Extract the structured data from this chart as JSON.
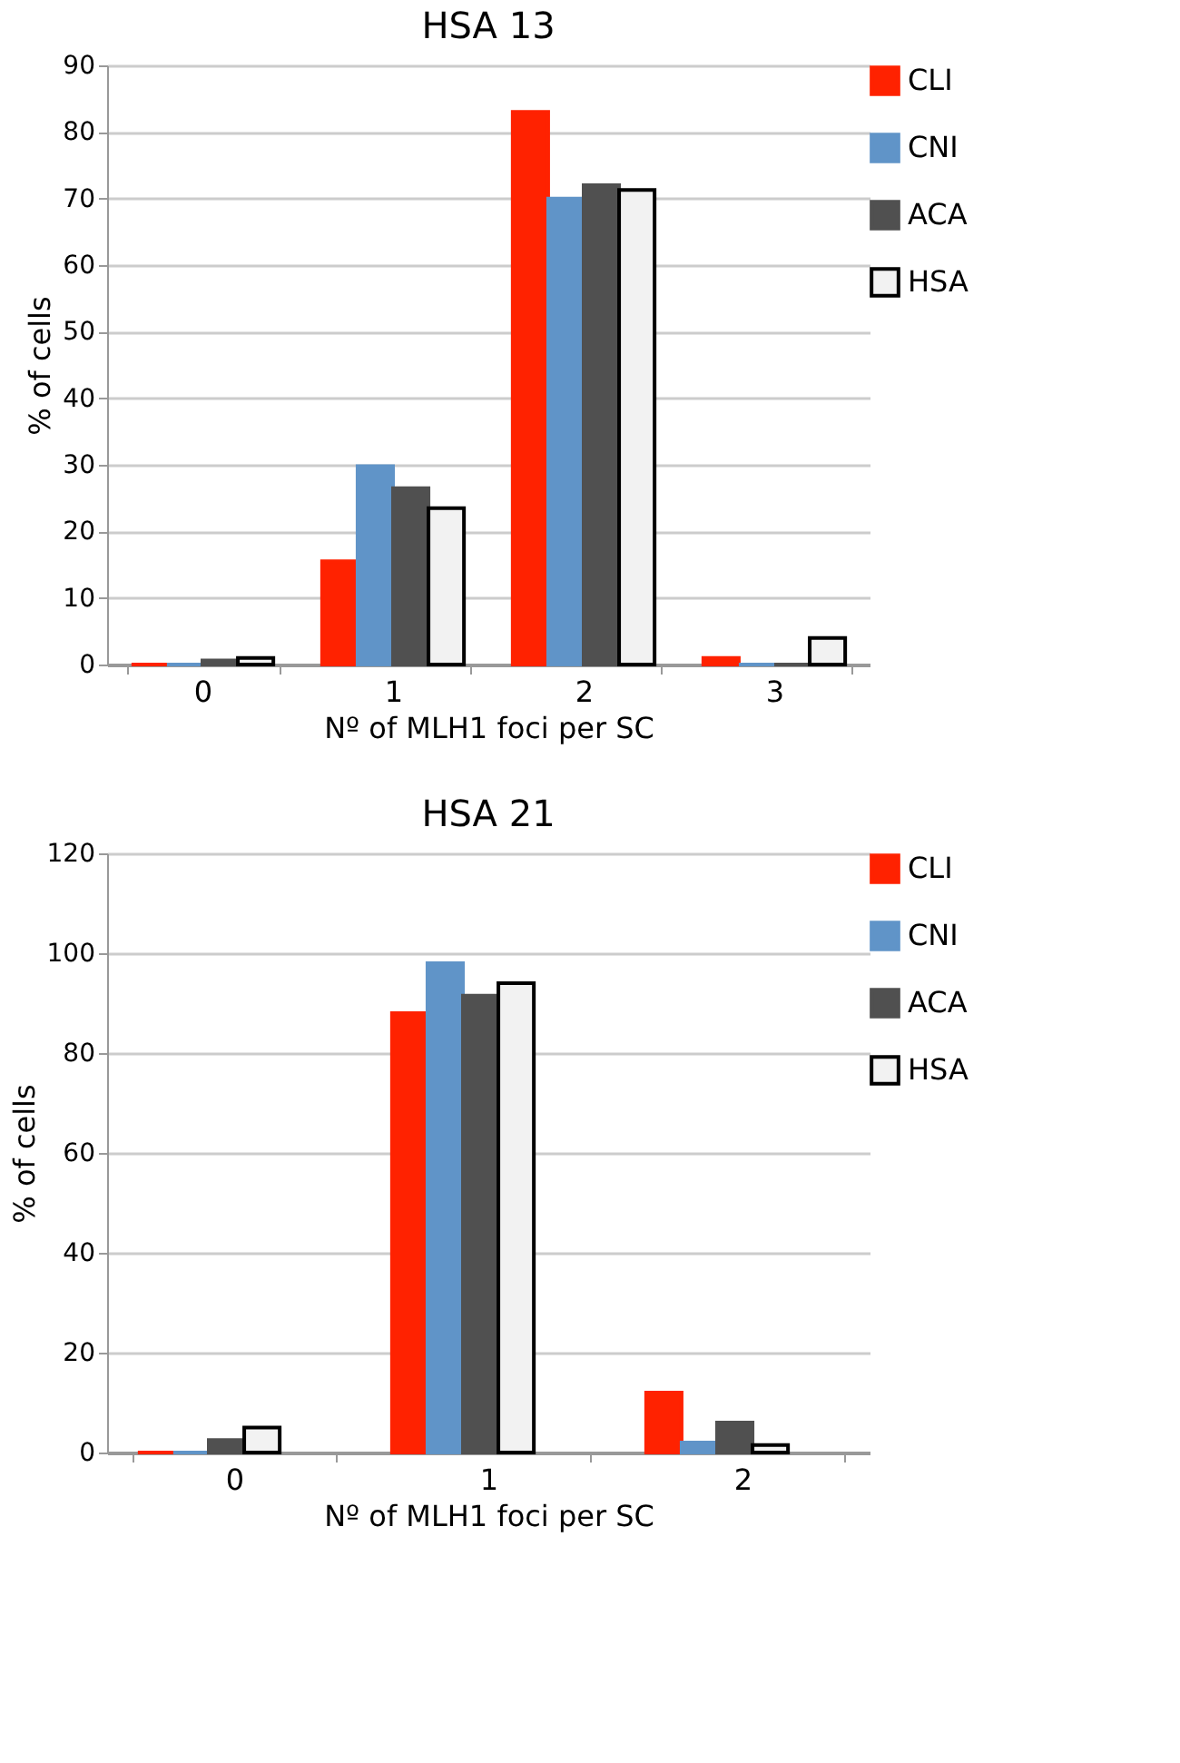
{
  "chart_data": [
    {
      "type": "bar",
      "title": "HSA 13",
      "xlabel": "Nº of MLH1 foci per SC",
      "ylabel": "% of cells",
      "categories": [
        "0",
        "1",
        "2",
        "3"
      ],
      "series": [
        {
          "name": "CLI",
          "color": "#ff2200",
          "values": [
            0,
            15.5,
            83,
            1
          ]
        },
        {
          "name": "CNI",
          "color": "#6094c8",
          "values": [
            0,
            29.8,
            70,
            0
          ]
        },
        {
          "name": "ACA",
          "color": "#505050",
          "values": [
            0.6,
            26.5,
            72,
            0
          ]
        },
        {
          "name": "HSA",
          "color": "#f2f2f2",
          "values": [
            1,
            23.5,
            71.3,
            4
          ]
        }
      ],
      "ylim": [
        0,
        90
      ],
      "yticks": [
        0,
        10,
        20,
        30,
        40,
        50,
        60,
        70,
        80,
        90
      ],
      "grid": "y",
      "legend": "top right"
    },
    {
      "type": "bar",
      "title": "HSA 21",
      "xlabel": "Nº of MLH1 foci per SC",
      "ylabel": "% of cells",
      "categories": [
        "0",
        "1",
        "2"
      ],
      "series": [
        {
          "name": "CLI",
          "color": "#ff2200",
          "values": [
            0,
            88,
            12
          ]
        },
        {
          "name": "CNI",
          "color": "#6094c8",
          "values": [
            0,
            98,
            2
          ]
        },
        {
          "name": "ACA",
          "color": "#505050",
          "values": [
            2.5,
            91.5,
            6
          ]
        },
        {
          "name": "HSA",
          "color": "#f2f2f2",
          "values": [
            5,
            94,
            1.5
          ]
        }
      ],
      "ylim": [
        0,
        120
      ],
      "yticks": [
        0,
        20,
        40,
        60,
        80,
        100,
        120
      ],
      "grid": "y",
      "legend": "top right"
    }
  ]
}
